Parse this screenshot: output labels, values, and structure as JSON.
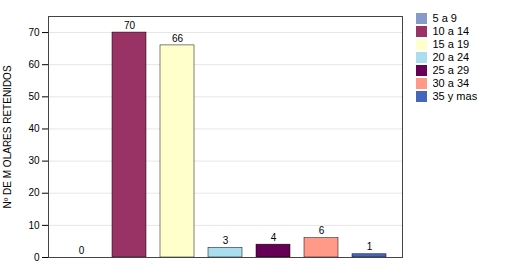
{
  "chart_data": {
    "type": "bar",
    "categories": [
      "5 a 9",
      "10 a 14",
      "15 a 19",
      "20 a 24",
      "25 a 29",
      "30 a 34",
      "35 y mas"
    ],
    "values": [
      0,
      70,
      66,
      3,
      4,
      6,
      1
    ],
    "colors": [
      "#8899CC",
      "#993366",
      "#FFFFCC",
      "#AADDEE",
      "#660055",
      "#FF9988",
      "#4466BB"
    ],
    "ylabel": "Nº DE M OLARES RETENIDOS",
    "ylim": [
      0,
      75
    ],
    "yticks": [
      0,
      10,
      20,
      30,
      40,
      50,
      60,
      70
    ],
    "grid": true,
    "legend": "right",
    "data_labels": true,
    "tick_labels": "y"
  }
}
